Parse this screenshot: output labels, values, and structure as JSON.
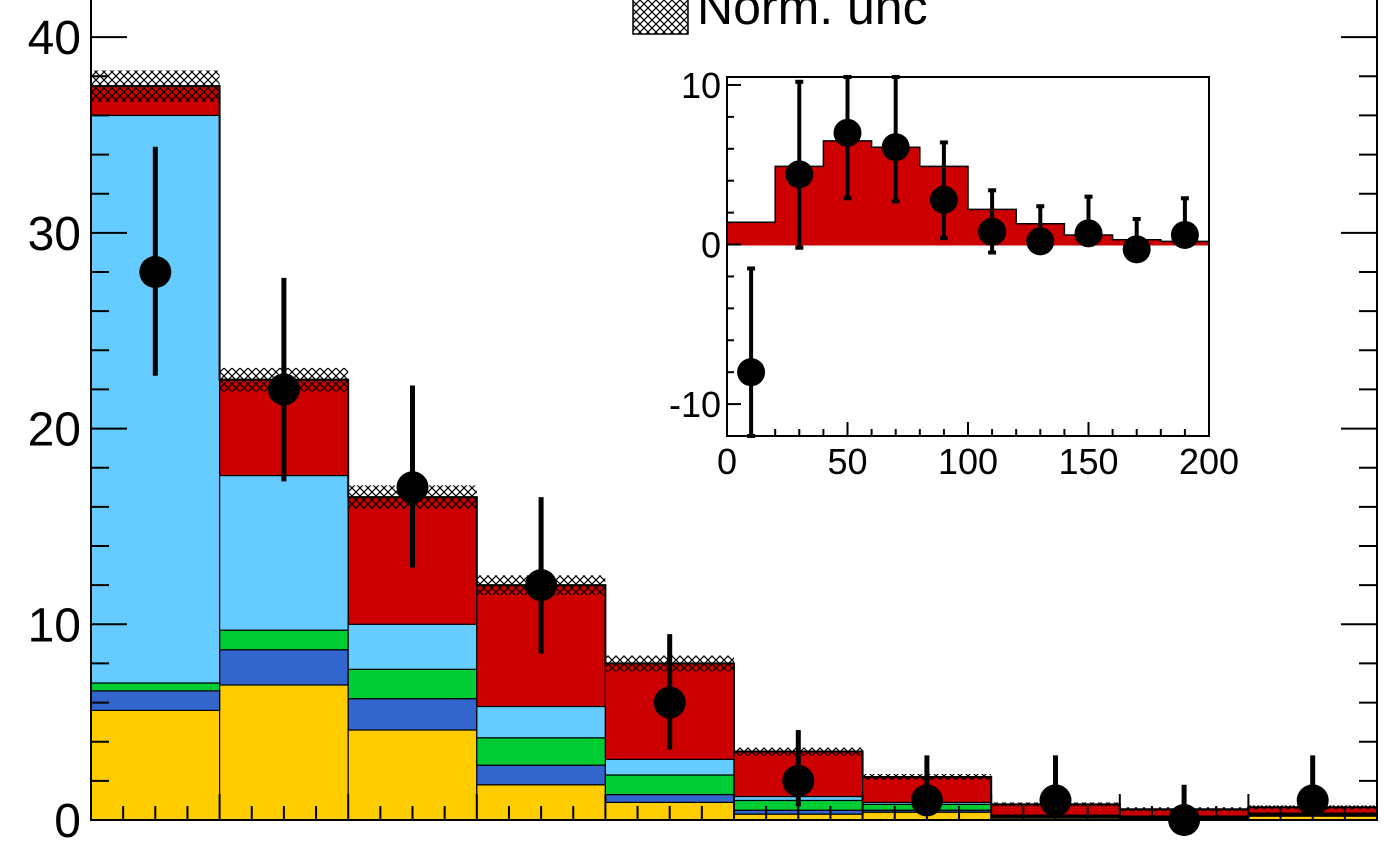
{
  "legend": {
    "entries": [
      {
        "label": "Norm. unc",
        "style": "hatch"
      }
    ]
  },
  "colors": {
    "yellow": "#ffcc00",
    "blue": "#3366cc",
    "green": "#00cc33",
    "lightblue": "#66ccff",
    "red": "#cc0000",
    "data": "#000000"
  },
  "chart_data": [
    {
      "type": "bar",
      "stacked": true,
      "xlim": [
        0,
        200
      ],
      "ylim": [
        0,
        42
      ],
      "y_ticks": [
        0,
        10,
        20,
        30,
        40
      ],
      "x_tick_labels_shown": false,
      "bin_edges": [
        0,
        20,
        40,
        60,
        80,
        100,
        120,
        140,
        160,
        180,
        200
      ],
      "series": [
        {
          "color": "yellow",
          "values": [
            5.6,
            6.9,
            4.6,
            1.8,
            0.9,
            0.3,
            0.4,
            0.1,
            0.05,
            0.2
          ]
        },
        {
          "color": "blue",
          "values": [
            1.0,
            1.8,
            1.6,
            1.0,
            0.4,
            0.2,
            0.1,
            0.05,
            0.05,
            0.05
          ]
        },
        {
          "color": "green",
          "values": [
            0.4,
            1.0,
            1.5,
            1.4,
            1.0,
            0.5,
            0.3,
            0.05,
            0.05,
            0.05
          ]
        },
        {
          "color": "lightblue",
          "values": [
            29.0,
            7.9,
            2.3,
            1.6,
            0.8,
            0.2,
            0.1,
            0.05,
            0.05,
            0.05
          ]
        },
        {
          "color": "red",
          "values": [
            1.5,
            4.9,
            6.5,
            6.2,
            4.9,
            2.3,
            1.3,
            0.55,
            0.35,
            0.3
          ]
        }
      ],
      "uncertainty": {
        "style": "hatch",
        "half_width": [
          0.8,
          0.6,
          0.6,
          0.5,
          0.4,
          0.2,
          0.15,
          0.1,
          0.1,
          0.1
        ]
      },
      "data_points": {
        "x": [
          10,
          30,
          50,
          70,
          90,
          110,
          130,
          150,
          170,
          190
        ],
        "y": [
          28,
          22,
          17,
          12,
          6,
          2,
          1,
          1,
          0,
          1
        ],
        "err_low": [
          5.3,
          4.7,
          4.1,
          3.5,
          2.4,
          1.3,
          0.8,
          0.8,
          0,
          0.8
        ],
        "err_high": [
          6.4,
          5.7,
          5.2,
          4.5,
          3.5,
          2.6,
          2.3,
          2.3,
          1.8,
          2.3
        ]
      }
    },
    {
      "type": "bar",
      "inset": true,
      "xlim": [
        0,
        200
      ],
      "ylim": [
        -12,
        10.5
      ],
      "x_ticks": [
        0,
        50,
        100,
        150,
        200
      ],
      "y_ticks": [
        -10,
        0,
        10
      ],
      "y_tick_labels": [
        "-10",
        "0",
        "10"
      ],
      "bin_edges": [
        0,
        20,
        40,
        60,
        80,
        100,
        120,
        140,
        160,
        180,
        200
      ],
      "series": [
        {
          "color": "red",
          "values": [
            1.4,
            4.9,
            6.5,
            6.1,
            4.9,
            2.2,
            1.3,
            0.6,
            0.3,
            0.2
          ]
        }
      ],
      "data_points": {
        "x": [
          10,
          30,
          50,
          70,
          90,
          110,
          130,
          150,
          170,
          190
        ],
        "y": [
          -8,
          4.4,
          7,
          6.1,
          2.8,
          0.8,
          0.2,
          0.7,
          -0.3,
          0.6
        ],
        "err_low": [
          4.0,
          4.6,
          4.1,
          3.4,
          2.4,
          1.3,
          0.0,
          0.0,
          0.0,
          0.0
        ],
        "err_high": [
          6.5,
          5.8,
          3.7,
          4.6,
          3.6,
          2.6,
          2.2,
          2.3,
          1.9,
          2.3
        ]
      }
    }
  ]
}
